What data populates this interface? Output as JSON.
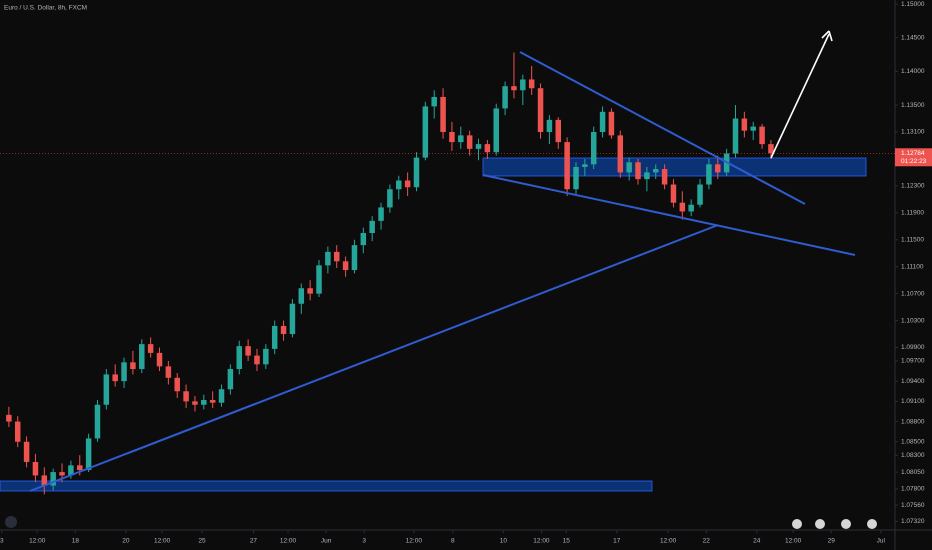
{
  "chart_data": {
    "type": "candlestick",
    "title": "Euro / U.S. Dollar, 8h, FXCM",
    "up_color": "#26a69a",
    "down_color": "#ef5350",
    "xlim": [
      -1,
      100
    ],
    "ylim": [
      1.0719,
      1.1506
    ],
    "ohlc": [
      [
        1.089,
        1.0902,
        1.0872,
        1.088
      ],
      [
        1.088,
        1.0888,
        1.0842,
        1.085
      ],
      [
        1.085,
        1.0858,
        1.0812,
        1.082
      ],
      [
        1.082,
        1.0832,
        1.079,
        1.08
      ],
      [
        1.08,
        1.0812,
        1.0772,
        1.0785
      ],
      [
        1.0785,
        1.081,
        1.0778,
        1.0805
      ],
      [
        1.0805,
        1.0818,
        1.079,
        1.08
      ],
      [
        1.08,
        1.0822,
        1.0795,
        1.0815
      ],
      [
        1.0815,
        1.083,
        1.08,
        1.0808
      ],
      [
        1.0808,
        1.0862,
        1.0805,
        1.0855
      ],
      [
        1.0855,
        1.0912,
        1.085,
        1.0905
      ],
      [
        1.0905,
        1.0958,
        1.0898,
        1.095
      ],
      [
        1.095,
        1.0965,
        1.0932,
        1.094
      ],
      [
        1.094,
        1.0975,
        1.093,
        1.0968
      ],
      [
        1.0968,
        1.0985,
        1.095,
        1.0958
      ],
      [
        1.0958,
        1.1002,
        1.0952,
        1.0995
      ],
      [
        1.0995,
        1.1005,
        1.0975,
        1.0982
      ],
      [
        1.0982,
        1.099,
        1.0955,
        1.0962
      ],
      [
        1.0962,
        1.097,
        1.0935,
        1.0945
      ],
      [
        1.0945,
        1.0952,
        1.0915,
        1.0925
      ],
      [
        1.0925,
        1.0935,
        1.09,
        1.091
      ],
      [
        1.091,
        1.0918,
        1.0895,
        1.0905
      ],
      [
        1.0905,
        1.092,
        1.0898,
        1.0912
      ],
      [
        1.0912,
        1.0925,
        1.09,
        1.0908
      ],
      [
        1.0908,
        1.0935,
        1.0902,
        1.0928
      ],
      [
        1.0928,
        1.0965,
        1.092,
        1.0958
      ],
      [
        1.0958,
        1.1,
        1.095,
        1.0992
      ],
      [
        1.0992,
        1.1002,
        1.097,
        1.0978
      ],
      [
        1.0978,
        1.0988,
        1.0955,
        1.0965
      ],
      [
        1.0965,
        1.0995,
        1.0958,
        1.0988
      ],
      [
        1.0988,
        1.103,
        1.098,
        1.1022
      ],
      [
        1.1022,
        1.103,
        1.1,
        1.101
      ],
      [
        1.101,
        1.1062,
        1.1005,
        1.1055
      ],
      [
        1.1055,
        1.1085,
        1.104,
        1.1078
      ],
      [
        1.1078,
        1.109,
        1.106,
        1.107
      ],
      [
        1.107,
        1.112,
        1.1065,
        1.1112
      ],
      [
        1.1112,
        1.114,
        1.11,
        1.1132
      ],
      [
        1.1132,
        1.1142,
        1.1108,
        1.1118
      ],
      [
        1.1118,
        1.1125,
        1.1095,
        1.1105
      ],
      [
        1.1105,
        1.115,
        1.11,
        1.1142
      ],
      [
        1.1142,
        1.1168,
        1.113,
        1.116
      ],
      [
        1.116,
        1.1185,
        1.1148,
        1.1178
      ],
      [
        1.1178,
        1.1205,
        1.1165,
        1.1198
      ],
      [
        1.1198,
        1.1232,
        1.119,
        1.1225
      ],
      [
        1.1225,
        1.1245,
        1.121,
        1.1238
      ],
      [
        1.1238,
        1.125,
        1.1215,
        1.1228
      ],
      [
        1.1228,
        1.128,
        1.1222,
        1.1272
      ],
      [
        1.1272,
        1.1355,
        1.1268,
        1.1348
      ],
      [
        1.1348,
        1.1372,
        1.133,
        1.1362
      ],
      [
        1.1362,
        1.1375,
        1.13,
        1.131
      ],
      [
        1.131,
        1.1325,
        1.1282,
        1.1295
      ],
      [
        1.1295,
        1.1318,
        1.1285,
        1.1305
      ],
      [
        1.1305,
        1.1312,
        1.1275,
        1.1285
      ],
      [
        1.1285,
        1.13,
        1.1268,
        1.1292
      ],
      [
        1.1292,
        1.1298,
        1.127,
        1.128
      ],
      [
        1.128,
        1.1352,
        1.1275,
        1.1345
      ],
      [
        1.1345,
        1.1385,
        1.1335,
        1.1378
      ],
      [
        1.1378,
        1.1428,
        1.136,
        1.1372
      ],
      [
        1.1372,
        1.1395,
        1.135,
        1.1388
      ],
      [
        1.1388,
        1.1408,
        1.1365,
        1.1375
      ],
      [
        1.1375,
        1.1382,
        1.13,
        1.131
      ],
      [
        1.131,
        1.1335,
        1.1292,
        1.1328
      ],
      [
        1.1328,
        1.1332,
        1.1285,
        1.1295
      ],
      [
        1.1295,
        1.1302,
        1.1215,
        1.1225
      ],
      [
        1.1225,
        1.1265,
        1.1218,
        1.1258
      ],
      [
        1.1258,
        1.127,
        1.1245,
        1.1262
      ],
      [
        1.1262,
        1.1318,
        1.1255,
        1.131
      ],
      [
        1.131,
        1.1348,
        1.1302,
        1.134
      ],
      [
        1.134,
        1.1345,
        1.13,
        1.1305
      ],
      [
        1.1305,
        1.1312,
        1.1242,
        1.125
      ],
      [
        1.125,
        1.1272,
        1.1238,
        1.1265
      ],
      [
        1.1265,
        1.127,
        1.1232,
        1.124
      ],
      [
        1.124,
        1.1258,
        1.1222,
        1.125
      ],
      [
        1.125,
        1.1262,
        1.124,
        1.1255
      ],
      [
        1.1255,
        1.1262,
        1.1225,
        1.1232
      ],
      [
        1.1232,
        1.124,
        1.1198,
        1.1205
      ],
      [
        1.1205,
        1.1222,
        1.118,
        1.1192
      ],
      [
        1.1192,
        1.121,
        1.1185,
        1.1202
      ],
      [
        1.1202,
        1.124,
        1.1198,
        1.1232
      ],
      [
        1.1232,
        1.127,
        1.1225,
        1.1262
      ],
      [
        1.1262,
        1.1275,
        1.124,
        1.125
      ],
      [
        1.125,
        1.1285,
        1.1245,
        1.1278
      ],
      [
        1.1278,
        1.135,
        1.1272,
        1.133
      ],
      [
        1.133,
        1.134,
        1.1302,
        1.1312
      ],
      [
        1.1312,
        1.1325,
        1.1298,
        1.1318
      ],
      [
        1.1318,
        1.1322,
        1.1285,
        1.1292
      ],
      [
        1.1292,
        1.1298,
        1.127,
        1.12784
      ]
    ],
    "current_price": 1.12784,
    "countdown": "01:22:23",
    "yticks": [
      {
        "value": 1.15,
        "label": "1.15000"
      },
      {
        "value": 1.145,
        "label": "1.14500"
      },
      {
        "value": 1.14,
        "label": "1.14000"
      },
      {
        "value": 1.135,
        "label": "1.13500"
      },
      {
        "value": 1.131,
        "label": "1.13100"
      },
      {
        "value": 1.123,
        "label": "1.12300"
      },
      {
        "value": 1.119,
        "label": "1.11900"
      },
      {
        "value": 1.115,
        "label": "1.11500"
      },
      {
        "value": 1.111,
        "label": "1.11100"
      },
      {
        "value": 1.107,
        "label": "1.10700"
      },
      {
        "value": 1.103,
        "label": "1.10300"
      },
      {
        "value": 1.099,
        "label": "1.09900"
      },
      {
        "value": 1.097,
        "label": "1.09700"
      },
      {
        "value": 1.094,
        "label": "1.09400"
      },
      {
        "value": 1.091,
        "label": "1.09100"
      },
      {
        "value": 1.088,
        "label": "1.08800"
      },
      {
        "value": 1.085,
        "label": "1.08500"
      },
      {
        "value": 1.083,
        "label": "1.08300"
      },
      {
        "value": 1.0805,
        "label": "1.08050"
      },
      {
        "value": 1.078,
        "label": "1.07800"
      },
      {
        "value": 1.0756,
        "label": "1.07560"
      },
      {
        "value": 1.0732,
        "label": "1.07320"
      }
    ],
    "xticks": [
      {
        "value": -0.8,
        "label": "3"
      },
      {
        "value": 3.2,
        "label": "12:00"
      },
      {
        "value": 7.5,
        "label": "18"
      },
      {
        "value": 13.2,
        "label": "20"
      },
      {
        "value": 17.3,
        "label": "12:00"
      },
      {
        "value": 21.8,
        "label": "25"
      },
      {
        "value": 27.6,
        "label": "27"
      },
      {
        "value": 31.5,
        "label": "12:00"
      },
      {
        "value": 35.8,
        "label": "Jun"
      },
      {
        "value": 40.1,
        "label": "3"
      },
      {
        "value": 45.7,
        "label": "12:00"
      },
      {
        "value": 50.1,
        "label": "8"
      },
      {
        "value": 55.8,
        "label": "10"
      },
      {
        "value": 60.1,
        "label": "12:00"
      },
      {
        "value": 62.9,
        "label": "15"
      },
      {
        "value": 68.6,
        "label": "17"
      },
      {
        "value": 74.4,
        "label": "12:00"
      },
      {
        "value": 78.7,
        "label": "22"
      },
      {
        "value": 84.4,
        "label": "24"
      },
      {
        "value": 88.5,
        "label": "12:00"
      },
      {
        "value": 92.8,
        "label": "29"
      },
      {
        "value": 98.4,
        "label": "Jul"
      }
    ]
  }
}
